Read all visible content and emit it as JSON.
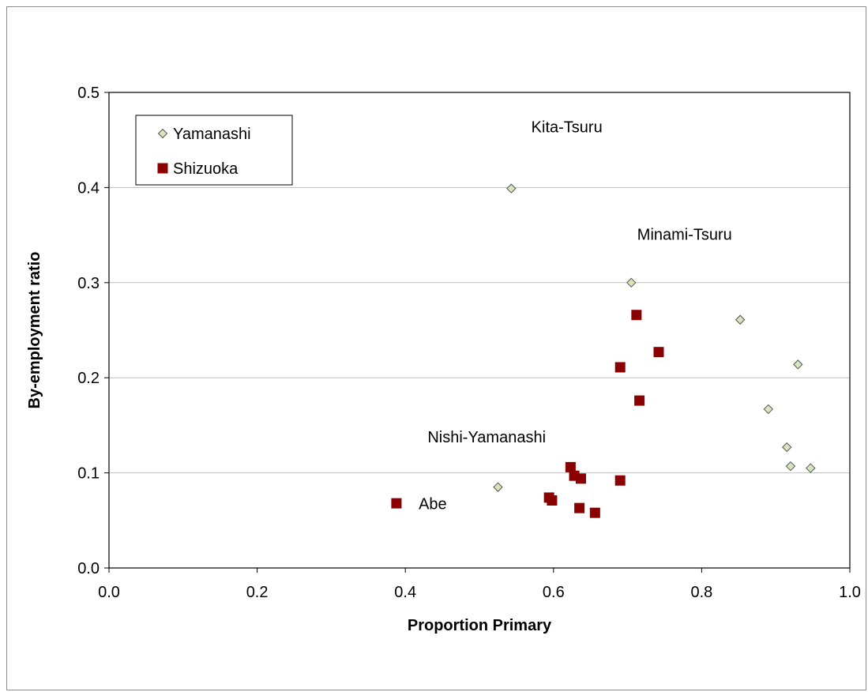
{
  "chart_data": {
    "type": "scatter",
    "title": "",
    "xlabel": "Proportion Primary",
    "ylabel": "By-employment ratio",
    "xlim": [
      0.0,
      1.0
    ],
    "ylim": [
      0.0,
      0.5
    ],
    "x_ticks": [
      "0.0",
      "0.2",
      "0.4",
      "0.6",
      "0.8",
      "1.0"
    ],
    "y_ticks": [
      "0.0",
      "0.1",
      "0.2",
      "0.3",
      "0.4",
      "0.5"
    ],
    "grid": "horizontal",
    "legend_position": "top-left",
    "series": [
      {
        "name": "Yamanashi",
        "marker": "diamond",
        "color": "#d8e4bc",
        "edge_color": "#555555",
        "points": [
          [
            0.543,
            0.399
          ],
          [
            0.705,
            0.3
          ],
          [
            0.852,
            0.261
          ],
          [
            0.93,
            0.214
          ],
          [
            0.89,
            0.167
          ],
          [
            0.915,
            0.127
          ],
          [
            0.92,
            0.107
          ],
          [
            0.947,
            0.105
          ],
          [
            0.525,
            0.085
          ]
        ]
      },
      {
        "name": "Shizuoka",
        "marker": "square",
        "color": "#8b0000",
        "edge_color": "#8b0000",
        "points": [
          [
            0.712,
            0.266
          ],
          [
            0.742,
            0.227
          ],
          [
            0.69,
            0.211
          ],
          [
            0.716,
            0.176
          ],
          [
            0.623,
            0.106
          ],
          [
            0.628,
            0.097
          ],
          [
            0.637,
            0.094
          ],
          [
            0.69,
            0.092
          ],
          [
            0.594,
            0.074
          ],
          [
            0.598,
            0.071
          ],
          [
            0.635,
            0.063
          ],
          [
            0.656,
            0.058
          ],
          [
            0.388,
            0.068
          ]
        ]
      }
    ],
    "annotations": [
      {
        "text": "Kita-Tsuru",
        "x": 0.57,
        "y": 0.458
      },
      {
        "text": "Minami-Tsuru",
        "x": 0.713,
        "y": 0.345
      },
      {
        "text": "Nishi-Yamanashi",
        "x": 0.43,
        "y": 0.132
      },
      {
        "text": "Abe",
        "x": 0.418,
        "y": 0.062
      }
    ]
  }
}
